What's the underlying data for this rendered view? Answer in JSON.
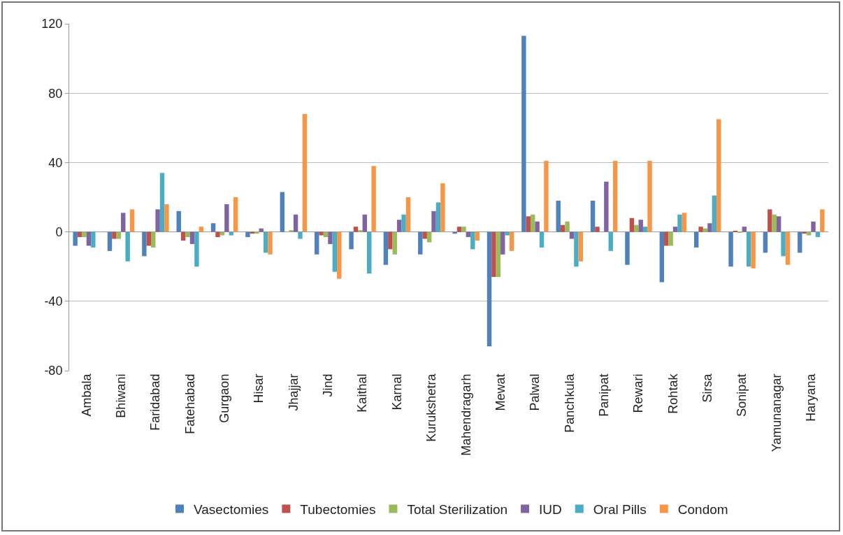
{
  "chart_data": {
    "type": "bar",
    "categories": [
      "Ambala",
      "Bhiwani",
      "Faridabad",
      "Fatehabad",
      "Gurgaon",
      "Hisar",
      "Jhajjar",
      "Jind",
      "Kaithal",
      "Karnal",
      "Kurukshetra",
      "Mahendragarh",
      "Mewat",
      "Palwal",
      "Panchkula",
      "Panipat",
      "Rewari",
      "Rohtak",
      "Sirsa",
      "Sonipat",
      "Yamunanagar",
      "Haryana"
    ],
    "series": [
      {
        "name": "Vasectomies",
        "color": "#4f81bd",
        "values": [
          -8,
          -11,
          -14,
          12,
          5,
          -3,
          23,
          -13,
          -10,
          -19,
          -13,
          -1,
          -66,
          113,
          18,
          18,
          -19,
          -29,
          -9,
          -20,
          -12,
          -12
        ]
      },
      {
        "name": "Tubectomies",
        "color": "#c0504d",
        "values": [
          -3,
          -4,
          -8,
          -5,
          -3,
          -1,
          0,
          -2,
          3,
          -10,
          -4,
          3,
          -26,
          9,
          4,
          3,
          8,
          -8,
          3,
          0.5,
          13,
          -1
        ]
      },
      {
        "name": "Total Sterilization",
        "color": "#9bbb59",
        "values": [
          -3,
          -4,
          -9,
          -3,
          -2,
          -1,
          1,
          -3,
          1,
          -13,
          -6,
          3,
          -26,
          10,
          6,
          0,
          4,
          -8,
          2,
          -0.5,
          10,
          -2
        ]
      },
      {
        "name": "IUD",
        "color": "#8064a2",
        "values": [
          -8,
          11,
          13,
          -7,
          16,
          2,
          10,
          -7,
          10,
          7,
          12,
          -3,
          -13,
          6,
          -4,
          29,
          7,
          3,
          5,
          3,
          9,
          6
        ]
      },
      {
        "name": "Oral Pills",
        "color": "#4bacc6",
        "values": [
          -9,
          -17,
          34,
          -20,
          -2,
          -12,
          -4,
          -23,
          -24,
          10,
          17,
          -10,
          -2,
          -9,
          -20,
          -11,
          3,
          10,
          21,
          -20,
          -14,
          -3
        ]
      },
      {
        "name": "Condom",
        "color": "#f79646",
        "values": [
          0,
          13,
          16,
          3,
          20,
          -13,
          68,
          -27,
          38,
          20,
          28,
          -5,
          -11,
          41,
          -17,
          41,
          41,
          11,
          65,
          -21,
          -19,
          13
        ]
      }
    ],
    "ylim": [
      -80,
      120
    ],
    "yticks": [
      -80,
      -40,
      0,
      40,
      80,
      120
    ],
    "grid": "y",
    "legend": "bottom"
  }
}
